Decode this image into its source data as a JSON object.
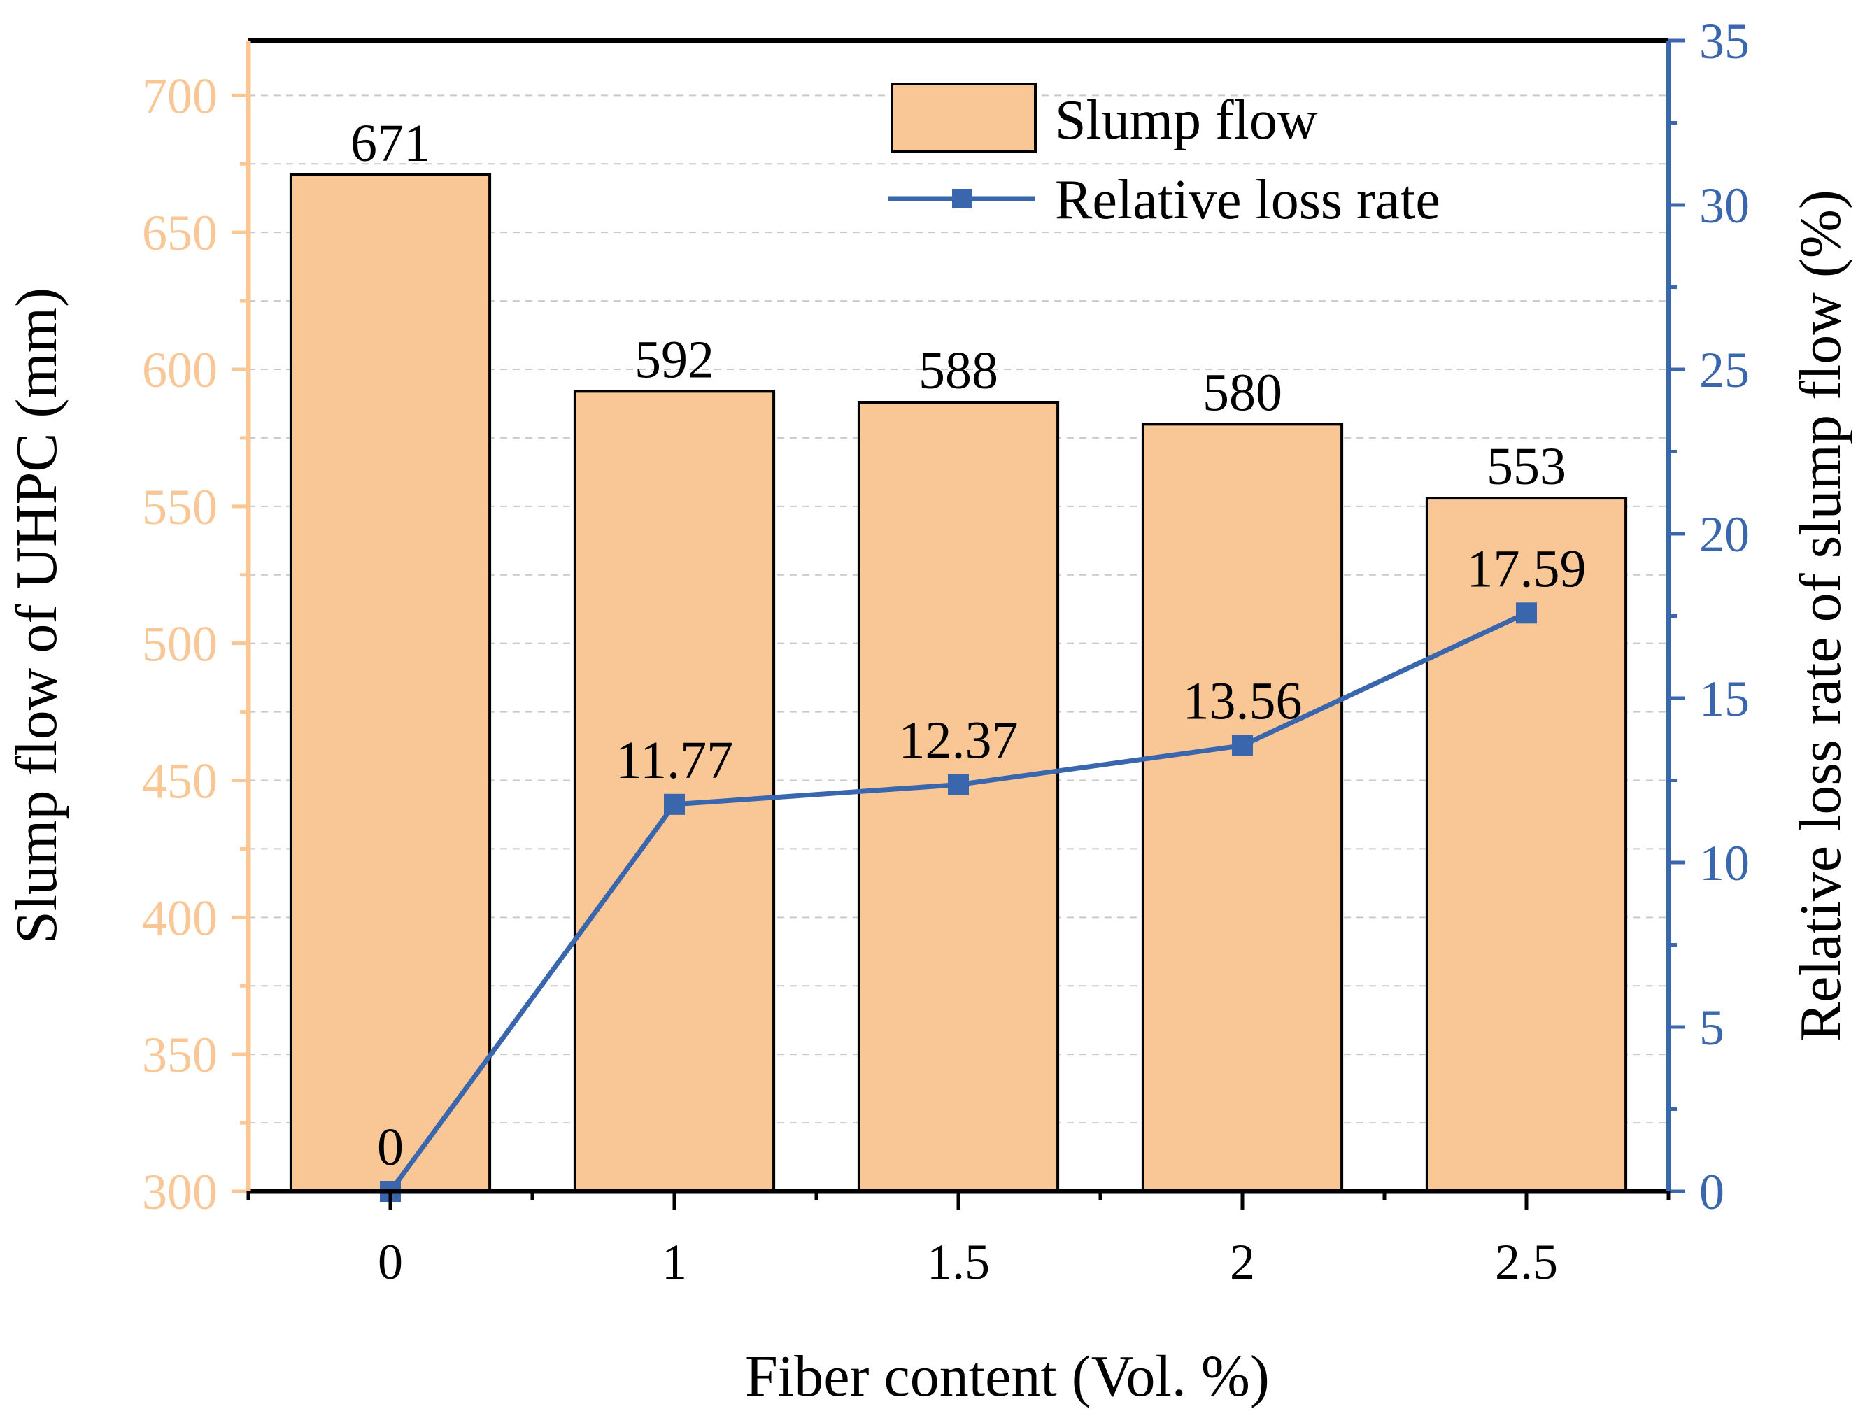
{
  "colors": {
    "bar_fill": "#f8c795",
    "bar_stroke": "#000000",
    "left_axis": "#f8c795",
    "right_axis": "#3a66ae",
    "line": "#3a66ae",
    "grid": "#c9c9c9"
  },
  "chart_data": {
    "type": "bar",
    "categories": [
      "0",
      "1",
      "1.5",
      "2",
      "2.5"
    ],
    "xlabel": "Fiber content (Vol. %)",
    "series": [
      {
        "name": "Slump flow",
        "type": "bar",
        "axis": "left",
        "values": [
          671,
          592,
          588,
          580,
          553
        ],
        "labels": [
          "671",
          "592",
          "588",
          "580",
          "553"
        ]
      },
      {
        "name": "Relative loss rate",
        "type": "line",
        "marker": "square",
        "axis": "right",
        "values": [
          0,
          11.77,
          12.37,
          13.56,
          17.59
        ],
        "labels": [
          "0",
          "11.77",
          "12.37",
          "13.56",
          "17.59"
        ]
      }
    ],
    "y_left": {
      "label": "Slump flow of UHPC (mm)",
      "range": [
        300,
        720
      ],
      "ticks": [
        "300",
        "350",
        "400",
        "450",
        "500",
        "550",
        "600",
        "650",
        "700"
      ]
    },
    "y_right": {
      "label": "Relative loss rate of slump flow (%)",
      "range": [
        0,
        35
      ],
      "ticks": [
        "0",
        "5",
        "10",
        "15",
        "20",
        "25",
        "30",
        "35"
      ]
    },
    "grid": true,
    "legend": {
      "position": "top-center",
      "entries": [
        "Slump flow",
        "Relative loss rate"
      ]
    }
  }
}
